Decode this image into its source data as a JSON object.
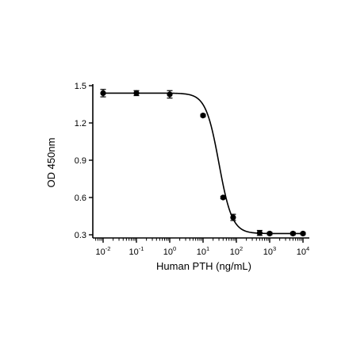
{
  "chart_data": {
    "type": "scatter",
    "xlabel": "Human PTH (ng/mL)",
    "ylabel": "OD 450nm",
    "x_scale": "log",
    "xlim": [
      0.01,
      10000
    ],
    "ylim": [
      0.27,
      1.5
    ],
    "y_ticks": [
      "0.3",
      "0.6",
      "0.9",
      "1.2",
      "1.5"
    ],
    "x_ticks": [
      {
        "base": "10",
        "exp": "-2"
      },
      {
        "base": "10",
        "exp": "-1"
      },
      {
        "base": "10",
        "exp": "0"
      },
      {
        "base": "10",
        "exp": "1"
      },
      {
        "base": "10",
        "exp": "2"
      },
      {
        "base": "10",
        "exp": "3"
      },
      {
        "base": "10",
        "exp": "4"
      }
    ],
    "points": [
      {
        "x": 0.01,
        "y": 1.44,
        "err": 0.03
      },
      {
        "x": 0.1,
        "y": 1.44,
        "err": 0.02
      },
      {
        "x": 1,
        "y": 1.43,
        "err": 0.03
      },
      {
        "x": 10,
        "y": 1.26,
        "err": 0.01
      },
      {
        "x": 40,
        "y": 0.6,
        "err": 0.01
      },
      {
        "x": 80,
        "y": 0.44,
        "err": 0.025
      },
      {
        "x": 500,
        "y": 0.315,
        "err": 0.02
      },
      {
        "x": 1000,
        "y": 0.31,
        "err": 0.01
      },
      {
        "x": 5000,
        "y": 0.31,
        "err": 0.01
      },
      {
        "x": 10000,
        "y": 0.31,
        "err": 0.008
      }
    ],
    "fit": {
      "bottom": 0.31,
      "top": 1.44,
      "ic50": 30,
      "hill": 2.2
    },
    "grid": false,
    "marker_color": "#000000"
  }
}
